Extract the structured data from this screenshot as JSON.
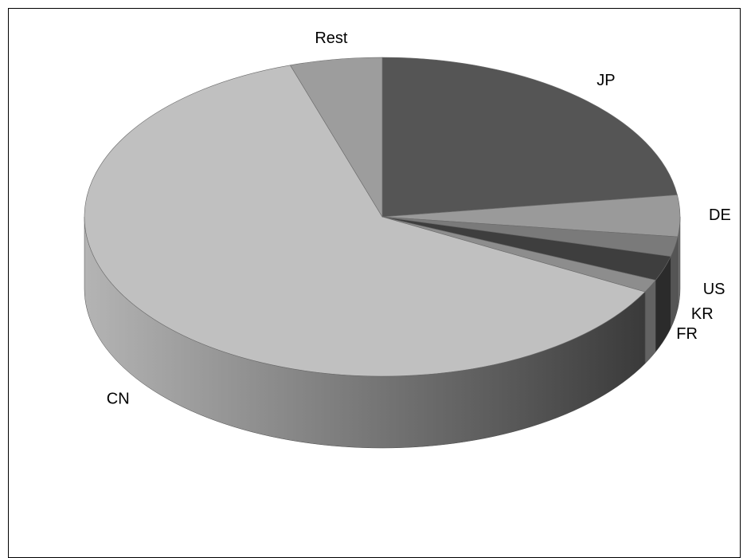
{
  "chart_data": {
    "type": "pie",
    "style": "3d",
    "title": "",
    "legend": "none",
    "slices": [
      {
        "label": "JP",
        "value": 22.8,
        "color": "#555555"
      },
      {
        "label": "DE",
        "value": 4.2,
        "color": "#9a9a9a"
      },
      {
        "label": "US",
        "value": 2.0,
        "color": "#7a7a7a"
      },
      {
        "label": "KR",
        "value": 2.5,
        "color": "#3e3e3e"
      },
      {
        "label": "FR",
        "value": 1.3,
        "color": "#8d8d8d"
      },
      {
        "label": "CN",
        "value": 62.2,
        "color": "#c0c0c0"
      },
      {
        "label": "Rest",
        "value": 5.0,
        "color": "#9d9d9d"
      }
    ]
  }
}
